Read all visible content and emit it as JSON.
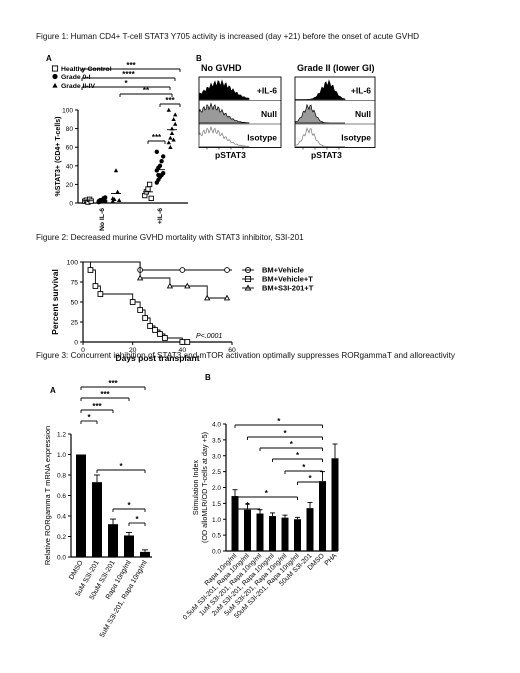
{
  "figure1": {
    "caption": "Figure 1:  Human CD4+ T-cell STAT3 Y705 activity is increased (day +21) before the onset of acute GVHD",
    "panelA": {
      "label": "A",
      "legend": [
        "Healthy Control",
        "Grade 0-I",
        "Grade II-IV"
      ],
      "ylabel": "%STAT3+ (CD4+ T-cells)",
      "yticks": [
        "0",
        "20",
        "40",
        "60",
        "80",
        "100"
      ],
      "xcategories": [
        "No IL-6",
        "+IL-6"
      ],
      "sig": [
        "***",
        "****",
        "*",
        "**",
        "***",
        "***"
      ]
    },
    "panelB": {
      "label": "B",
      "titles": [
        "No GVHD",
        "Grade II (lower GI)"
      ],
      "rows": [
        "+IL-6",
        "Null",
        "Isotype"
      ],
      "xlabel": "pSTAT3"
    }
  },
  "figure2": {
    "caption": "Figure 2:  Decreased murine GVHD mortality with STAT3 inhibitor, S3I-201",
    "pvalue": "P<.0001"
  },
  "figure3": {
    "caption": "Figure 3:  Concurrent inhibition of STAT3 and mTOR activation optimally suppresses RORgammaT and alloreactivity",
    "panelA": {
      "label": "A",
      "sig": [
        "*",
        "***",
        "***",
        "***",
        "*",
        "*",
        "*"
      ]
    },
    "panelB": {
      "label": "B",
      "sig": [
        "*",
        "*",
        "*",
        "*",
        "*",
        "*",
        "*",
        "*"
      ]
    }
  },
  "chart_data": [
    {
      "type": "scatter",
      "title": "",
      "xlabel": "",
      "ylabel": "%STAT3+ (CD4+ T-cells)",
      "ylim": [
        0,
        100
      ],
      "categories": [
        "No IL-6",
        "+IL-6"
      ],
      "series": [
        {
          "name": "Healthy Control",
          "values": [
            [
              2,
              3,
              1,
              4,
              2
            ],
            [
              8,
              12,
              15,
              20,
              5
            ]
          ]
        },
        {
          "name": "Grade 0-I",
          "values": [
            [
              1,
              2,
              3,
              5,
              2,
              1,
              3,
              2,
              4,
              6,
              2,
              3
            ],
            [
              22,
              25,
              28,
              30,
              32,
              35,
              38,
              40,
              45,
              50,
              55,
              30
            ]
          ]
        },
        {
          "name": "Grade II-IV",
          "values": [
            [
              2,
              4,
              35,
              12,
              3,
              5
            ],
            [
              65,
              70,
              80,
              90,
              95,
              100,
              60,
              75,
              68,
              85
            ]
          ]
        }
      ]
    },
    {
      "type": "line",
      "title": "",
      "xlabel": "Days post transplant",
      "ylabel": "Percent survival",
      "xlim": [
        0,
        60
      ],
      "ylim": [
        0,
        100
      ],
      "xticks": [
        0,
        20,
        40,
        60
      ],
      "yticks": [
        0,
        25,
        50,
        75,
        100
      ],
      "legend_position": "top-right",
      "series": [
        {
          "name": "BM+Vehicle",
          "x": [
            0,
            23,
            23,
            60
          ],
          "y": [
            100,
            100,
            90,
            90
          ],
          "markers_x": [
            23,
            40,
            58
          ],
          "markers_y": [
            90,
            90,
            90
          ]
        },
        {
          "name": "BM+Vehicle+T",
          "x": [
            0,
            3,
            3,
            5,
            5,
            7,
            7,
            20,
            20,
            23,
            23,
            25,
            25,
            27,
            27,
            29,
            29,
            31,
            31,
            33,
            33,
            40,
            40,
            42
          ],
          "y": [
            100,
            100,
            90,
            90,
            70,
            70,
            60,
            60,
            50,
            50,
            40,
            40,
            30,
            30,
            20,
            20,
            15,
            15,
            10,
            10,
            5,
            5,
            0,
            0
          ],
          "markers_x": [
            3,
            5,
            7,
            20,
            23,
            25,
            27,
            29,
            31,
            33,
            40,
            42
          ],
          "markers_y": [
            90,
            70,
            60,
            50,
            40,
            30,
            20,
            15,
            10,
            5,
            0,
            0
          ]
        },
        {
          "name": "BM+S3I-201+T",
          "x": [
            0,
            23,
            23,
            35,
            35,
            50,
            50,
            58
          ],
          "y": [
            100,
            100,
            80,
            80,
            70,
            70,
            55,
            55
          ],
          "markers_x": [
            23,
            35,
            42,
            50,
            58
          ],
          "markers_y": [
            80,
            70,
            70,
            55,
            55
          ]
        }
      ],
      "annotation": "P<.0001"
    },
    {
      "type": "bar",
      "title": "",
      "xlabel": "",
      "ylabel": "Relative RORgamma T mRNA expression",
      "ylim": [
        0,
        1.2
      ],
      "yticks": [
        "0.0",
        "0.2",
        "0.4",
        "0.6",
        "0.8",
        "1.0",
        "1.2"
      ],
      "categories": [
        "DMSO",
        "5uM S3I-201",
        "50uM S3I-201",
        "Rapa 10ng/ml",
        "5uM S3I-201, Rapa 10ng/ml"
      ],
      "values": [
        1.0,
        0.73,
        0.32,
        0.21,
        0.05
      ],
      "errors": [
        0.0,
        0.07,
        0.05,
        0.03,
        0.02
      ]
    },
    {
      "type": "bar",
      "title": "",
      "xlabel": "",
      "ylabel": "Stimulation Index (OD alloMLR/OD T-cells at day +5)",
      "ylim": [
        0,
        4.0
      ],
      "yticks": [
        "0.0",
        "0.5",
        "1.0",
        "1.5",
        "2.0",
        "2.5",
        "3.0",
        "3.5",
        "4.0"
      ],
      "categories": [
        "Rapa 10ng/ml",
        "0.5uM S3I-201, Rapa 10ng/ml",
        "1uM S3I-201, Rapa 10ng/ml",
        "2uM S3I-201, Rapa 10ng/ml",
        "5uM S3I-201, Rapa 10ng/ml",
        "50uM S3I-201, Rapa 10ng/ml",
        "50uM S3I-201",
        "DMSO",
        "PHA"
      ],
      "values": [
        1.73,
        1.3,
        1.18,
        1.1,
        1.05,
        1.0,
        1.35,
        2.2,
        2.92
      ],
      "errors": [
        0.2,
        0.18,
        0.12,
        0.1,
        0.08,
        0.06,
        0.18,
        0.3,
        0.45
      ]
    }
  ]
}
